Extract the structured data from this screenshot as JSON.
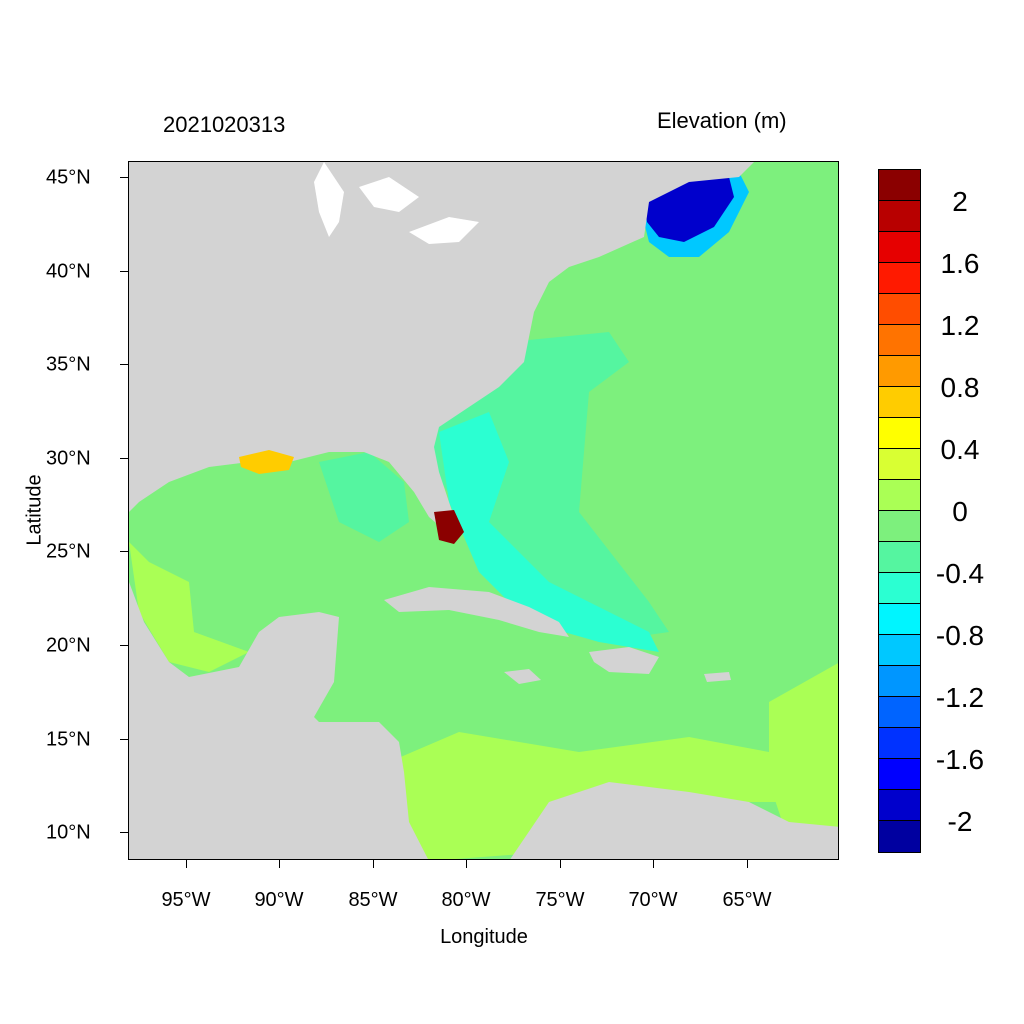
{
  "titles": {
    "left": "2021020313",
    "right": "Elevation (m)"
  },
  "axes": {
    "xlabel": "Longitude",
    "ylabel": "Latitude",
    "xticks": [
      "95°W",
      "90°W",
      "85°W",
      "80°W",
      "75°W",
      "70°W",
      "65°W"
    ],
    "yticks": [
      "45°N",
      "40°N",
      "35°N",
      "30°N",
      "25°N",
      "20°N",
      "15°N",
      "10°N"
    ]
  },
  "map": {
    "land_color": "#d3d3d3",
    "water_base_color": "#7df07d",
    "regions": [
      "North America",
      "Gulf of Mexico",
      "Caribbean Sea",
      "Atlantic Ocean",
      "Gulf of Maine",
      "Florida"
    ]
  },
  "colorbar": {
    "labels": [
      "2",
      "1.6",
      "1.2",
      "0.8",
      "0.4",
      "0",
      "-0.4",
      "-0.8",
      "-1.2",
      "-1.6",
      "-2"
    ],
    "colors": [
      "#8b0000",
      "#b80000",
      "#e60000",
      "#ff1a00",
      "#ff4d00",
      "#ff7300",
      "#ff9a00",
      "#ffcc00",
      "#ffff00",
      "#d9ff33",
      "#aaff55",
      "#7df07d",
      "#55f5a0",
      "#2bffd2",
      "#00f5ff",
      "#00c8ff",
      "#0096ff",
      "#0064ff",
      "#0032ff",
      "#0000ff",
      "#0000cc",
      "#0000a0"
    ]
  }
}
